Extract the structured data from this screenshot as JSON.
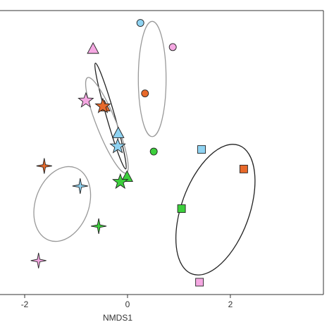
{
  "chart_data": {
    "type": "scatter",
    "x_label": "NMDS1",
    "xlim": [
      -2.48,
      3.81
    ],
    "ylim": [
      -2.77,
      2.75
    ],
    "xticks": [
      -2,
      0,
      2
    ],
    "series": [
      {
        "marker": "circle",
        "x": [
          0.25,
          0.88,
          0.34,
          0.51
        ],
        "y": [
          2.51,
          2.04,
          1.14,
          0.01
        ],
        "colors": [
          "#8fd3f2",
          "#f5a8e2",
          "#e8692a",
          "#3ccf3c"
        ]
      },
      {
        "marker": "triangle",
        "x": [
          -0.67,
          -0.45,
          -0.18,
          -0.01
        ],
        "y": [
          2.0,
          0.88,
          0.36,
          -0.49
        ],
        "colors": [
          "#f5a8e2",
          "#e8692a",
          "#8fd3f2",
          "#3ccf3c"
        ]
      },
      {
        "marker": "star",
        "x": [
          -0.81,
          -0.48,
          -0.19,
          -0.14
        ],
        "y": [
          1.0,
          0.89,
          0.11,
          -0.58
        ],
        "colors": [
          "#f5a8e2",
          "#e8692a",
          "#8fd3f2",
          "#3ccf3c"
        ]
      },
      {
        "marker": "sparkle",
        "x": [
          -1.62,
          -0.92,
          -0.56,
          -1.73
        ],
        "y": [
          -0.27,
          -0.66,
          -1.44,
          -2.11
        ],
        "colors": [
          "#e8692a",
          "#8fd3f2",
          "#3ccf3c",
          "#f5a8e2"
        ]
      },
      {
        "marker": "square",
        "x": [
          1.44,
          2.26,
          1.05,
          1.4
        ],
        "y": [
          0.05,
          -0.33,
          -1.1,
          -2.53
        ],
        "colors": [
          "#8fd3f2",
          "#e8692a",
          "#3ccf3c",
          "#f5a8e2"
        ]
      }
    ],
    "ellipses": [
      {
        "cx": 0.48,
        "cy": 1.42,
        "rx": 0.27,
        "ry": 1.12,
        "angle": 0,
        "color": "#999999"
      },
      {
        "cx": -0.33,
        "cy": 0.7,
        "rx": 0.08,
        "ry": 1.07,
        "angle": -16,
        "color": "#222222"
      },
      {
        "cx": -0.4,
        "cy": 0.52,
        "rx": 0.19,
        "ry": 1.0,
        "angle": -22,
        "color": "#999999"
      },
      {
        "cx": -1.27,
        "cy": -1.01,
        "rx": 0.52,
        "ry": 0.75,
        "angle": 20,
        "color": "#999999"
      },
      {
        "cx": 1.71,
        "cy": -1.12,
        "rx": 0.66,
        "ry": 1.33,
        "angle": 20,
        "color": "#222222"
      }
    ]
  }
}
